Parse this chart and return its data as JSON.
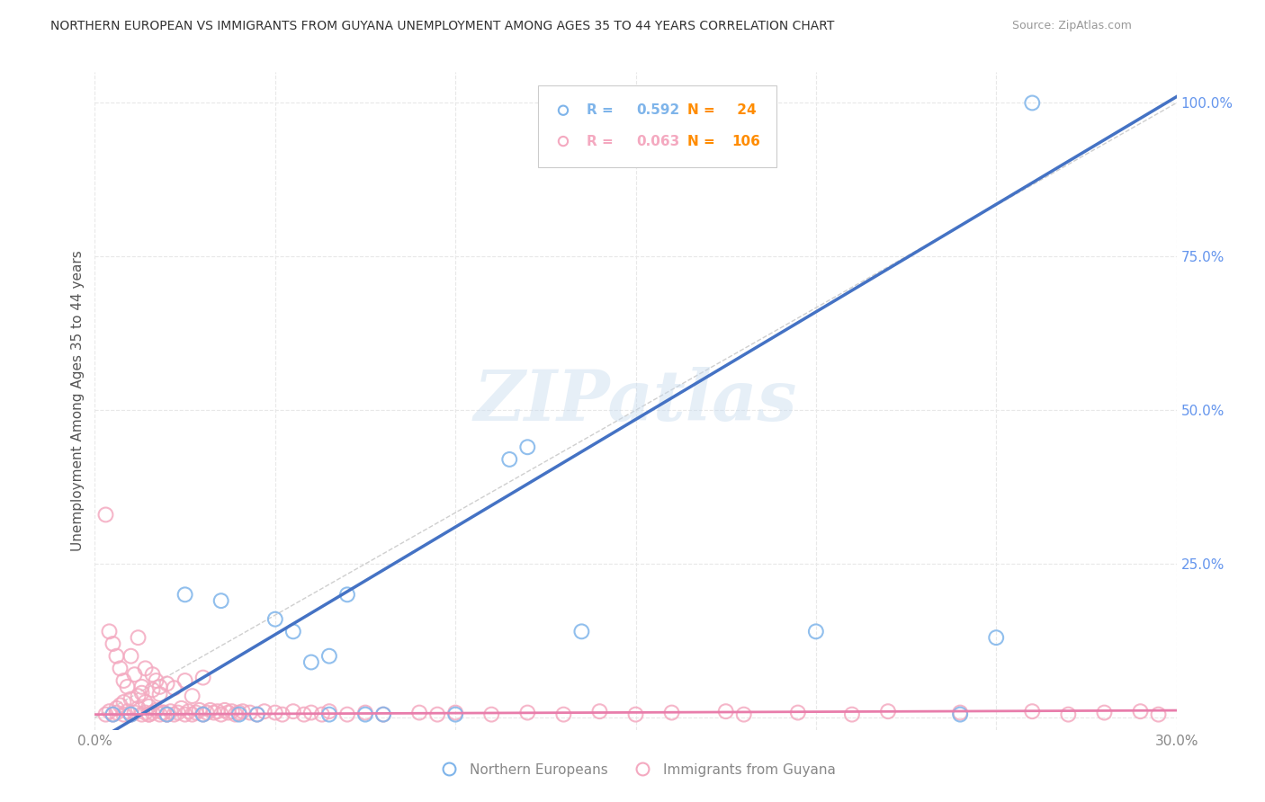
{
  "title": "NORTHERN EUROPEAN VS IMMIGRANTS FROM GUYANA UNEMPLOYMENT AMONG AGES 35 TO 44 YEARS CORRELATION CHART",
  "source": "Source: ZipAtlas.com",
  "ylabel_left": "Unemployment Among Ages 35 to 44 years",
  "xlim": [
    0.0,
    0.3
  ],
  "ylim": [
    -0.02,
    1.05
  ],
  "xticks": [
    0.0,
    0.05,
    0.1,
    0.15,
    0.2,
    0.25,
    0.3
  ],
  "yticks_right": [
    0.0,
    0.25,
    0.5,
    0.75,
    1.0
  ],
  "yticklabels_right": [
    "",
    "25.0%",
    "50.0%",
    "75.0%",
    "100.0%"
  ],
  "blue_R": 0.592,
  "blue_N": 24,
  "pink_R": 0.063,
  "pink_N": 106,
  "blue_color": "#7EB4EA",
  "pink_color": "#F4A9C0",
  "blue_line_color": "#4472C4",
  "pink_line_color": "#E87DAB",
  "diagonal_color": "#BBBBBB",
  "watermark": "ZIPatlas",
  "blue_scatter_x": [
    0.005,
    0.01,
    0.02,
    0.025,
    0.03,
    0.035,
    0.04,
    0.045,
    0.05,
    0.055,
    0.06,
    0.065,
    0.065,
    0.07,
    0.075,
    0.08,
    0.1,
    0.115,
    0.12,
    0.135,
    0.2,
    0.24,
    0.25,
    0.26
  ],
  "blue_scatter_y": [
    0.005,
    0.005,
    0.005,
    0.2,
    0.005,
    0.19,
    0.005,
    0.005,
    0.16,
    0.14,
    0.09,
    0.005,
    0.1,
    0.2,
    0.005,
    0.005,
    0.005,
    0.42,
    0.44,
    0.14,
    0.14,
    0.005,
    0.13,
    1.0
  ],
  "pink_scatter_x": [
    0.003,
    0.004,
    0.005,
    0.006,
    0.006,
    0.007,
    0.008,
    0.008,
    0.009,
    0.01,
    0.01,
    0.011,
    0.012,
    0.012,
    0.013,
    0.013,
    0.014,
    0.014,
    0.015,
    0.015,
    0.016,
    0.016,
    0.017,
    0.018,
    0.018,
    0.019,
    0.02,
    0.02,
    0.021,
    0.022,
    0.022,
    0.023,
    0.024,
    0.025,
    0.025,
    0.026,
    0.027,
    0.027,
    0.028,
    0.029,
    0.03,
    0.03,
    0.031,
    0.032,
    0.033,
    0.034,
    0.035,
    0.036,
    0.037,
    0.038,
    0.039,
    0.04,
    0.041,
    0.043,
    0.045,
    0.047,
    0.05,
    0.052,
    0.055,
    0.058,
    0.06,
    0.063,
    0.065,
    0.07,
    0.075,
    0.08,
    0.09,
    0.095,
    0.1,
    0.11,
    0.12,
    0.13,
    0.14,
    0.15,
    0.16,
    0.175,
    0.18,
    0.195,
    0.21,
    0.22,
    0.24,
    0.26,
    0.27,
    0.28,
    0.29,
    0.295,
    0.003,
    0.004,
    0.005,
    0.006,
    0.007,
    0.008,
    0.009,
    0.01,
    0.011,
    0.012,
    0.013,
    0.014,
    0.015,
    0.016,
    0.017,
    0.018,
    0.019,
    0.02
  ],
  "pink_scatter_y": [
    0.005,
    0.01,
    0.005,
    0.015,
    0.008,
    0.02,
    0.005,
    0.025,
    0.01,
    0.005,
    0.03,
    0.008,
    0.015,
    0.035,
    0.005,
    0.04,
    0.008,
    0.025,
    0.005,
    0.018,
    0.008,
    0.045,
    0.012,
    0.005,
    0.038,
    0.008,
    0.005,
    0.055,
    0.01,
    0.005,
    0.048,
    0.008,
    0.015,
    0.005,
    0.06,
    0.01,
    0.005,
    0.035,
    0.008,
    0.012,
    0.005,
    0.065,
    0.008,
    0.012,
    0.008,
    0.01,
    0.005,
    0.012,
    0.008,
    0.01,
    0.005,
    0.008,
    0.01,
    0.008,
    0.005,
    0.01,
    0.008,
    0.005,
    0.01,
    0.005,
    0.008,
    0.005,
    0.01,
    0.005,
    0.008,
    0.005,
    0.008,
    0.005,
    0.008,
    0.005,
    0.008,
    0.005,
    0.01,
    0.005,
    0.008,
    0.01,
    0.005,
    0.008,
    0.005,
    0.01,
    0.008,
    0.01,
    0.005,
    0.008,
    0.01,
    0.005,
    0.33,
    0.14,
    0.12,
    0.1,
    0.08,
    0.06,
    0.05,
    0.1,
    0.07,
    0.13,
    0.05,
    0.08,
    0.005,
    0.07,
    0.06,
    0.05,
    0.008,
    0.005
  ],
  "grid_color": "#E8E8E8",
  "background_color": "#FFFFFF"
}
